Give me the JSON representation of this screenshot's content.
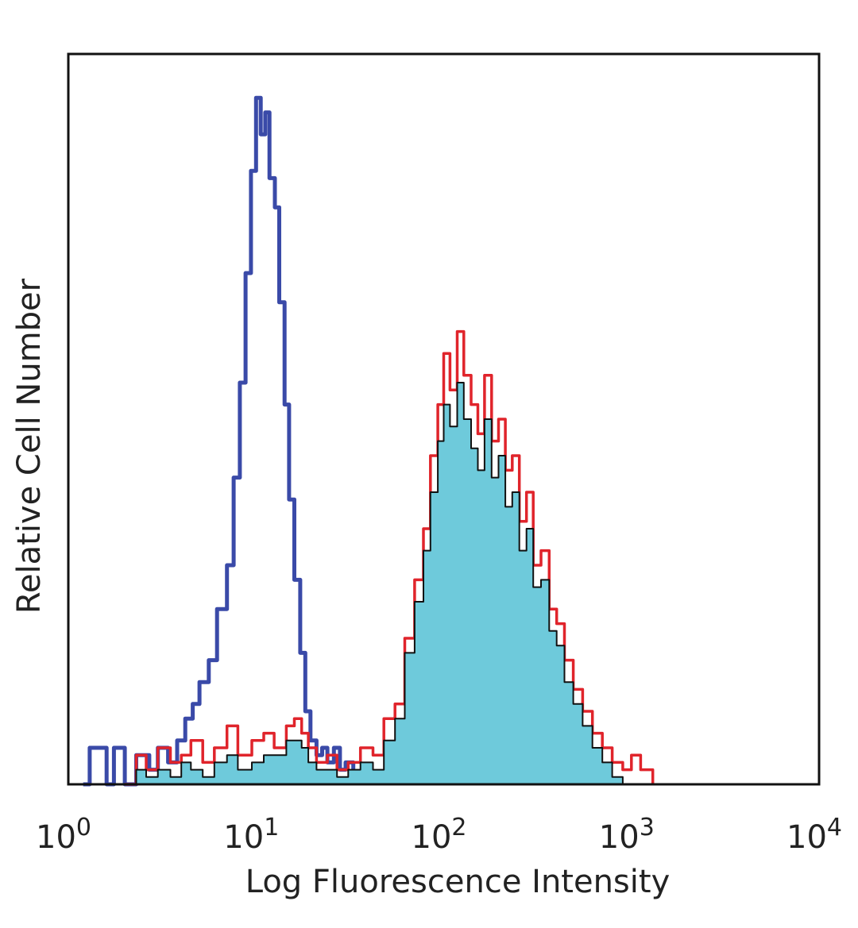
{
  "chart_data": {
    "type": "area",
    "title": "",
    "xlabel": "Log Fluorescence Intensity",
    "ylabel": "Relative Cell Number",
    "x_scale": "log",
    "xlim": [
      1,
      10000
    ],
    "ylim": [
      0,
      100
    ],
    "grid": false,
    "x_ticks": [
      {
        "value": 1,
        "base": "10",
        "exp": "0"
      },
      {
        "value": 10,
        "base": "10",
        "exp": "1"
      },
      {
        "value": 100,
        "base": "10",
        "exp": "2"
      },
      {
        "value": 1000,
        "base": "10",
        "exp": "3"
      },
      {
        "value": 10000,
        "base": "10",
        "exp": "4"
      }
    ],
    "series": [
      {
        "role": "isotype-control",
        "style": "outline",
        "color": "#3a4aa8",
        "x": [
          1.2,
          1.3,
          1.6,
          1.75,
          2.0,
          2.3,
          2.7,
          3.0,
          3.4,
          3.8,
          4.2,
          4.6,
          5.0,
          5.6,
          6.2,
          7.0,
          7.6,
          8.2,
          8.8,
          9.4,
          10.0,
          10.6,
          11.2,
          11.8,
          12.6,
          13.3,
          14.2,
          15.0,
          16.0,
          17.2,
          18.3,
          19.5,
          21.0,
          22.5,
          24.0,
          26.0,
          28.0,
          30.0,
          33.0
        ],
        "y": [
          0,
          5,
          0,
          5,
          0,
          4,
          2,
          5,
          3,
          6,
          9,
          11,
          14,
          17,
          24,
          30,
          42,
          55,
          70,
          84,
          94,
          89,
          92,
          83,
          79,
          66,
          52,
          39,
          28,
          18,
          10,
          6,
          4,
          5,
          3,
          5,
          2,
          3,
          0
        ]
      },
      {
        "role": "stained-sample-1",
        "style": "outline",
        "color": "#e0242b",
        "x": [
          2.0,
          2.3,
          2.6,
          3.0,
          3.5,
          4.0,
          4.5,
          5.2,
          6.0,
          7.0,
          8.0,
          9.5,
          11.0,
          12.5,
          14.5,
          16.0,
          17.5,
          19.0,
          21.0,
          24.0,
          27.0,
          31.0,
          36.0,
          42.0,
          48.0,
          55.0,
          62.0,
          70.0,
          78.0,
          85.0,
          93.0,
          100.0,
          108.0,
          118.0,
          128.0,
          140.0,
          152.0,
          165.0,
          180.0,
          196.0,
          213.0,
          232.0,
          253.0,
          276.0,
          300.0,
          330.0,
          365.0,
          400.0,
          440.0,
          490.0,
          550.0,
          620.0,
          700.0,
          790.0,
          900.0,
          1000.0,
          1120.0,
          1300.0
        ],
        "y": [
          0,
          4,
          2,
          5,
          3,
          4,
          6,
          3,
          5,
          8,
          4,
          6,
          7,
          5,
          8,
          9,
          7,
          5,
          3,
          4,
          2,
          3,
          5,
          4,
          9,
          11,
          20,
          28,
          35,
          45,
          52,
          59,
          54,
          62,
          56,
          52,
          48,
          56,
          47,
          50,
          43,
          45,
          36,
          40,
          30,
          32,
          24,
          22,
          17,
          13,
          10,
          7,
          5,
          3,
          2,
          4,
          2,
          0
        ]
      },
      {
        "role": "stained-sample-2",
        "style": "filled",
        "color": "#6ecadb",
        "edge": "#111111",
        "x": [
          2.0,
          2.3,
          2.6,
          3.0,
          3.5,
          4.0,
          4.5,
          5.2,
          6.0,
          7.0,
          8.0,
          9.5,
          11.0,
          12.5,
          14.5,
          16.0,
          17.5,
          19.0,
          21.0,
          24.0,
          27.0,
          31.0,
          36.0,
          42.0,
          48.0,
          55.0,
          62.0,
          70.0,
          78.0,
          85.0,
          93.0,
          100.0,
          108.0,
          118.0,
          128.0,
          140.0,
          152.0,
          165.0,
          180.0,
          196.0,
          213.0,
          232.0,
          253.0,
          276.0,
          300.0,
          330.0,
          365.0,
          400.0,
          440.0,
          490.0,
          550.0,
          620.0,
          700.0,
          790.0,
          900.0
        ],
        "y": [
          0,
          2,
          1,
          2,
          1,
          3,
          2,
          1,
          3,
          4,
          2,
          3,
          4,
          4,
          6,
          6,
          5,
          3,
          2,
          2,
          1,
          2,
          3,
          2,
          6,
          9,
          18,
          25,
          32,
          40,
          47,
          52,
          49,
          55,
          50,
          46,
          43,
          50,
          42,
          45,
          38,
          40,
          32,
          35,
          27,
          28,
          21,
          19,
          14,
          11,
          8,
          5,
          3,
          1,
          0
        ]
      }
    ]
  }
}
